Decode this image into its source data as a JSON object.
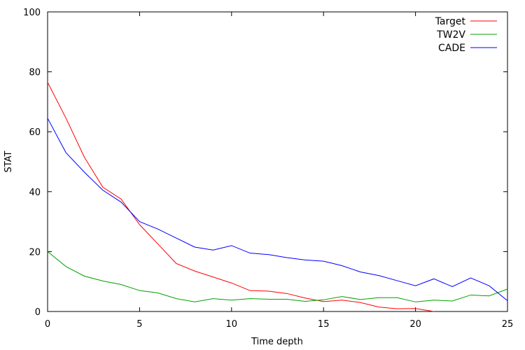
{
  "chart_data": {
    "type": "line",
    "title": "",
    "xlabel": "Time depth",
    "ylabel": "STAT",
    "xlim": [
      0,
      25
    ],
    "ylim": [
      0,
      100
    ],
    "xticks": [
      0,
      5,
      10,
      15,
      20,
      25
    ],
    "yticks": [
      0,
      20,
      40,
      60,
      80,
      100
    ],
    "grid": false,
    "legend_position": "top-right",
    "x": [
      0,
      1,
      2,
      3,
      4,
      5,
      6,
      7,
      8,
      9,
      10,
      11,
      12,
      13,
      14,
      15,
      16,
      17,
      18,
      19,
      20,
      21,
      22,
      23,
      24,
      25
    ],
    "series": [
      {
        "name": "Target",
        "color": "#ff0000",
        "values": [
          76.5,
          64.5,
          51.5,
          41.5,
          37.5,
          29,
          22.5,
          16,
          13.5,
          11.5,
          9.5,
          7,
          6.8,
          6,
          4.5,
          3.3,
          3.8,
          3,
          1.5,
          0.9,
          1,
          0,
          null,
          null,
          null,
          null
        ]
      },
      {
        "name": "TW2V",
        "color": "#00a000",
        "values": [
          20,
          15,
          11.8,
          10.2,
          9,
          7,
          6.2,
          4.3,
          3.2,
          4.3,
          3.8,
          4.3,
          4.1,
          4.1,
          3.4,
          3.9,
          5,
          4,
          4.6,
          4.6,
          3.2,
          3.8,
          3.5,
          5.5,
          5.2,
          7.5
        ]
      },
      {
        "name": "CADE",
        "color": "#0000ff",
        "values": [
          64.5,
          53,
          46.5,
          40.5,
          36.5,
          30,
          27.5,
          24.5,
          21.5,
          20.5,
          22,
          19.5,
          19,
          18,
          17.2,
          16.8,
          15.3,
          13.2,
          12,
          10.3,
          8.6,
          10.9,
          8.3,
          11.2,
          8.6,
          3.6
        ]
      }
    ]
  }
}
